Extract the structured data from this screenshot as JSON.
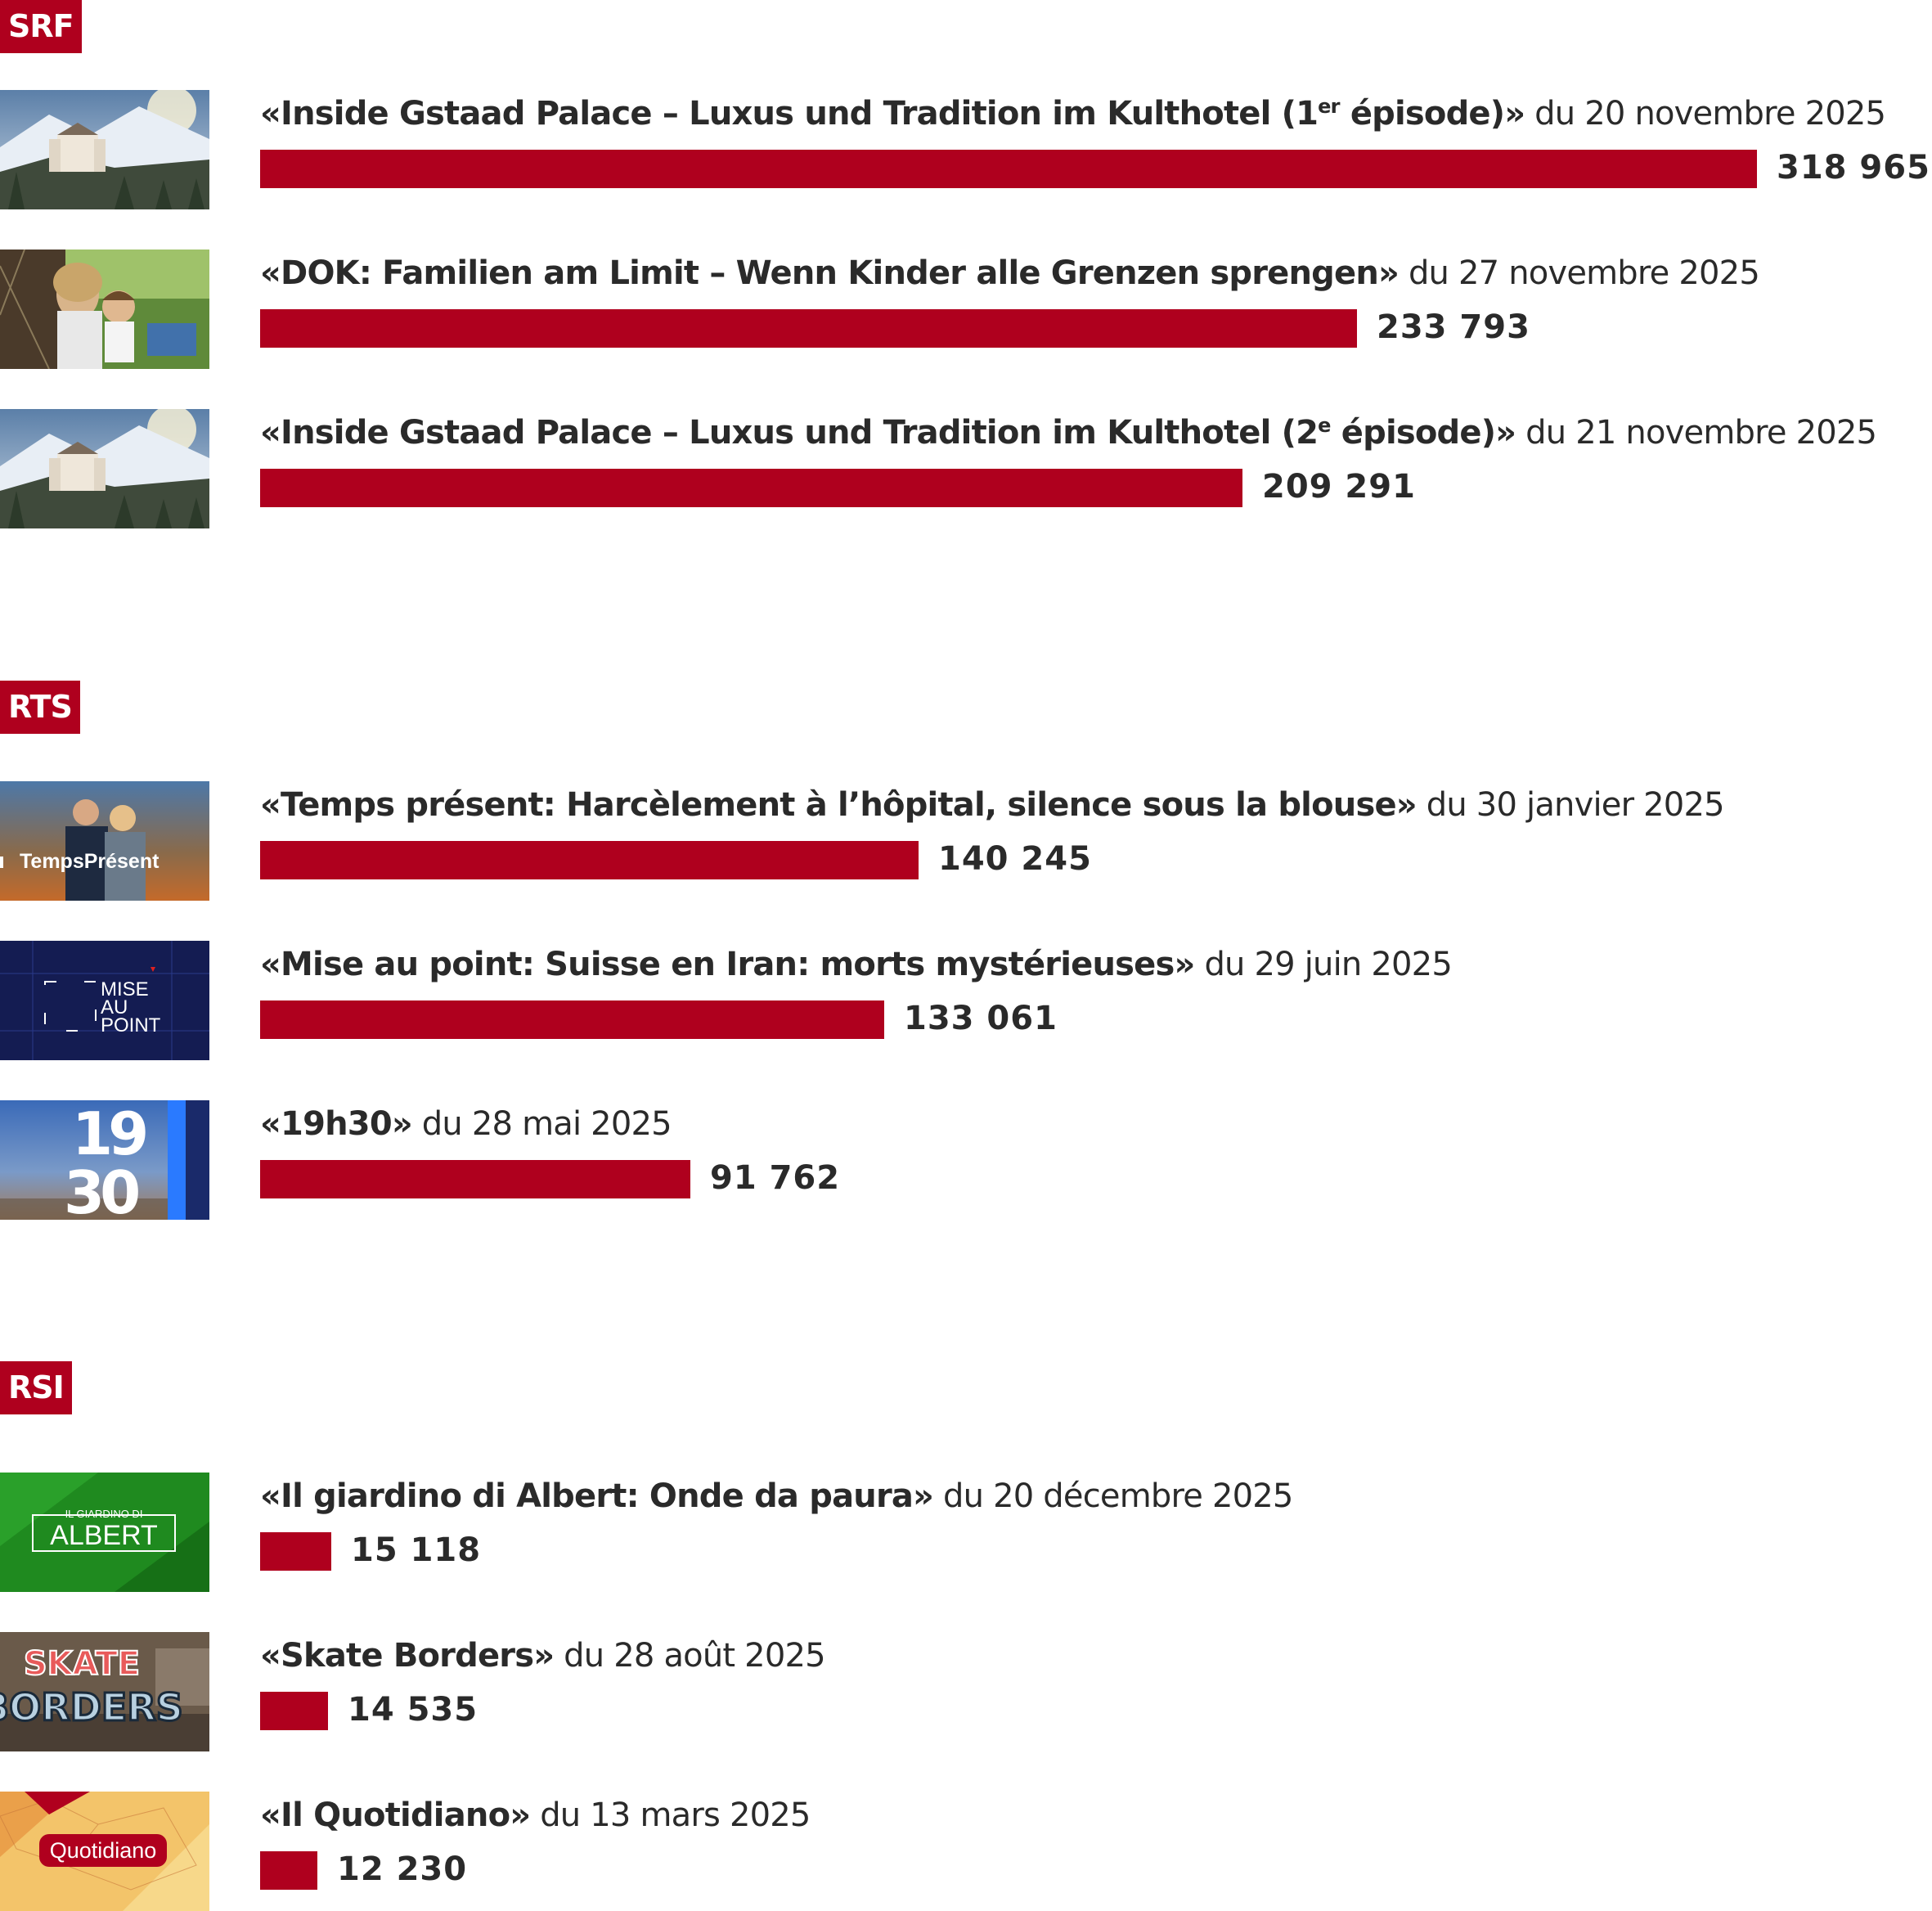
{
  "colors": {
    "bar": "#af001e",
    "badge": "#af001e",
    "text": "#2a2a2a"
  },
  "chart_data": {
    "type": "bar",
    "orientation": "horizontal",
    "value_range": [
      0,
      318965
    ],
    "groups": [
      {
        "name": "SRF",
        "items": [
          {
            "title_pre": "«Inside Gstaad Palace – Luxus und Tradition im Kulthotel (1",
            "title_sup": "er",
            "title_post": " épisode)»",
            "date": " du 20 novembre 2025",
            "value": 318965,
            "value_label": "318 965",
            "thumb_icon": "gstaad-palace-thumbnail"
          },
          {
            "title_pre": "«DOK: Familien am Limit – Wenn Kinder alle Grenzen sprengen»",
            "title_sup": "",
            "title_post": "",
            "date": " du 27 novembre 2025",
            "value": 233793,
            "value_label": "233 793",
            "thumb_icon": "dok-family-thumbnail"
          },
          {
            "title_pre": "«Inside Gstaad Palace – Luxus und Tradition im Kulthotel (2",
            "title_sup": "e",
            "title_post": " épisode)»",
            "date": " du 21 novembre 2025",
            "value": 209291,
            "value_label": "209 291",
            "thumb_icon": "gstaad-palace-thumbnail"
          }
        ]
      },
      {
        "name": "RTS",
        "items": [
          {
            "title_pre": "«Temps présent: Harcèlement à l’hôpital, silence sous la blouse»",
            "title_sup": "",
            "title_post": "",
            "date": " du 30 janvier 2025",
            "value": 140245,
            "value_label": "140 245",
            "thumb_icon": "temps-present-thumbnail",
            "thumb_text": "TempsPrésent"
          },
          {
            "title_pre": "«Mise au point: Suisse en Iran: morts mystérieuses»",
            "title_sup": "",
            "title_post": "",
            "date": " du 29 juin 2025",
            "value": 133061,
            "value_label": "133 061",
            "thumb_icon": "mise-au-point-thumbnail",
            "thumb_text": [
              "MISE",
              "AU",
              "POINT"
            ]
          },
          {
            "title_pre": "«19h30»",
            "title_sup": "",
            "title_post": "",
            "date": " du 28 mai 2025",
            "value": 91762,
            "value_label": "91 762",
            "thumb_icon": "19h30-thumbnail",
            "thumb_text": [
              "19",
              "30"
            ]
          }
        ]
      },
      {
        "name": "RSI",
        "items": [
          {
            "title_pre": "«Il giardino di Albert: Onde da paura»",
            "title_sup": "",
            "title_post": "",
            "date": " du 20 décembre 2025",
            "value": 15118,
            "value_label": "15 118",
            "thumb_icon": "albert-thumbnail",
            "thumb_text": [
              "IL GIARDINO DI",
              "ALBERT"
            ]
          },
          {
            "title_pre": "«Skate Borders»",
            "title_sup": "",
            "title_post": "",
            "date": " du 28 août 2025",
            "value": 14535,
            "value_label": "14 535",
            "thumb_icon": "skate-borders-thumbnail",
            "thumb_text": [
              "SKATE",
              "BORDERS"
            ]
          },
          {
            "title_pre": "«Il Quotidiano»",
            "title_sup": "",
            "title_post": "",
            "date": " du 13 mars 2025",
            "value": 12230,
            "value_label": "12 230",
            "thumb_icon": "quotidiano-thumbnail",
            "thumb_text": "Quotidiano"
          }
        ]
      }
    ]
  }
}
